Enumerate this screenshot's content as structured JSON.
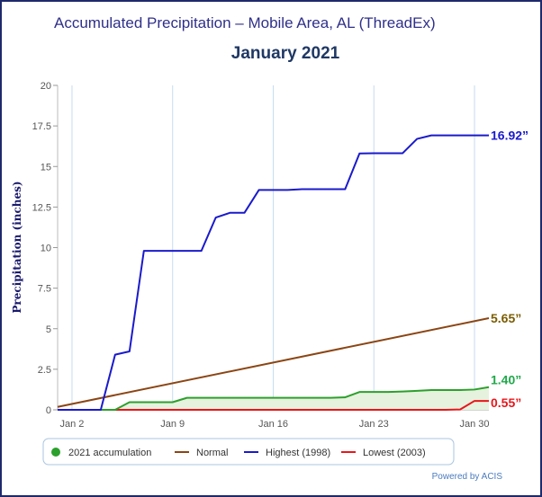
{
  "header": {
    "title": "Accumulated Precipitation – Mobile Area, AL (ThreadEx)",
    "subtitle": "January 2021"
  },
  "footer": {
    "credit": "Powered by ACIS"
  },
  "chart_data": {
    "type": "line",
    "title": "Accumulated Precipitation – Mobile Area, AL (ThreadEx)",
    "subtitle": "January 2021",
    "xlabel": "",
    "ylabel": "Precipitation (inches)",
    "xlim": [
      1,
      31
    ],
    "ylim": [
      0,
      20
    ],
    "x_ticks": [
      2,
      9,
      16,
      23,
      30
    ],
    "x_tick_labels": [
      "Jan 2",
      "Jan 9",
      "Jan 16",
      "Jan 23",
      "Jan 30"
    ],
    "y_ticks": [
      0,
      2.5,
      5,
      7.5,
      10,
      12.5,
      15,
      17.5,
      20
    ],
    "y_tick_labels": [
      "0",
      "2.5",
      "5",
      "7.5",
      "10",
      "12.5",
      "15",
      "17.5",
      "20"
    ],
    "grid": true,
    "legend_position": "bottom",
    "series": [
      {
        "name": "2021 accumulation",
        "color": "#2ca02c",
        "fill": "#e6f2de",
        "marker": "circle",
        "x": [
          1,
          2,
          3,
          4,
          5,
          6,
          7,
          8,
          9,
          10,
          11,
          12,
          13,
          14,
          15,
          16,
          17,
          18,
          19,
          20,
          21,
          22,
          23,
          24,
          25,
          26,
          27,
          28,
          29,
          30,
          31
        ],
        "y": [
          0,
          0,
          0,
          0,
          0,
          0.47,
          0.47,
          0.47,
          0.47,
          0.74,
          0.74,
          0.74,
          0.74,
          0.74,
          0.74,
          0.74,
          0.74,
          0.74,
          0.74,
          0.74,
          0.77,
          1.1,
          1.1,
          1.1,
          1.13,
          1.17,
          1.22,
          1.22,
          1.22,
          1.25,
          1.4
        ],
        "end_label": "1.40”",
        "end_label_color": "#1fa84a"
      },
      {
        "name": "Normal",
        "color": "#8b4513",
        "x": [
          1,
          31
        ],
        "y": [
          0.18,
          5.65
        ],
        "end_label": "5.65”",
        "end_label_color": "#7a5c00"
      },
      {
        "name": "Highest (1998)",
        "color": "#1a1acc",
        "x": [
          1,
          2,
          3,
          4,
          5,
          6,
          7,
          8,
          9,
          10,
          11,
          12,
          13,
          14,
          15,
          16,
          17,
          18,
          19,
          20,
          21,
          22,
          23,
          24,
          25,
          26,
          27,
          28,
          29,
          30,
          31
        ],
        "y": [
          0,
          0,
          0,
          0,
          3.4,
          3.6,
          9.8,
          9.8,
          9.8,
          9.8,
          9.8,
          11.85,
          12.15,
          12.15,
          13.55,
          13.55,
          13.55,
          13.6,
          13.6,
          13.6,
          13.6,
          15.8,
          15.82,
          15.82,
          15.82,
          16.7,
          16.92,
          16.92,
          16.92,
          16.92,
          16.92
        ],
        "end_label": "16.92”",
        "end_label_color": "#1a1acc"
      },
      {
        "name": "Lowest (2003)",
        "color": "#e8161b",
        "x": [
          1,
          2,
          3,
          4,
          5,
          6,
          7,
          8,
          9,
          10,
          11,
          12,
          13,
          14,
          15,
          16,
          17,
          18,
          19,
          20,
          21,
          22,
          23,
          24,
          25,
          26,
          27,
          28,
          29,
          30,
          31
        ],
        "y": [
          0,
          0,
          0,
          0,
          0,
          0,
          0,
          0,
          0,
          0,
          0,
          0,
          0,
          0,
          0,
          0,
          0,
          0,
          0,
          0,
          0,
          0,
          0,
          0,
          0,
          0,
          0,
          0,
          0.02,
          0.55,
          0.55
        ],
        "end_label": "0.55”",
        "end_label_color": "#e8161b"
      }
    ]
  }
}
